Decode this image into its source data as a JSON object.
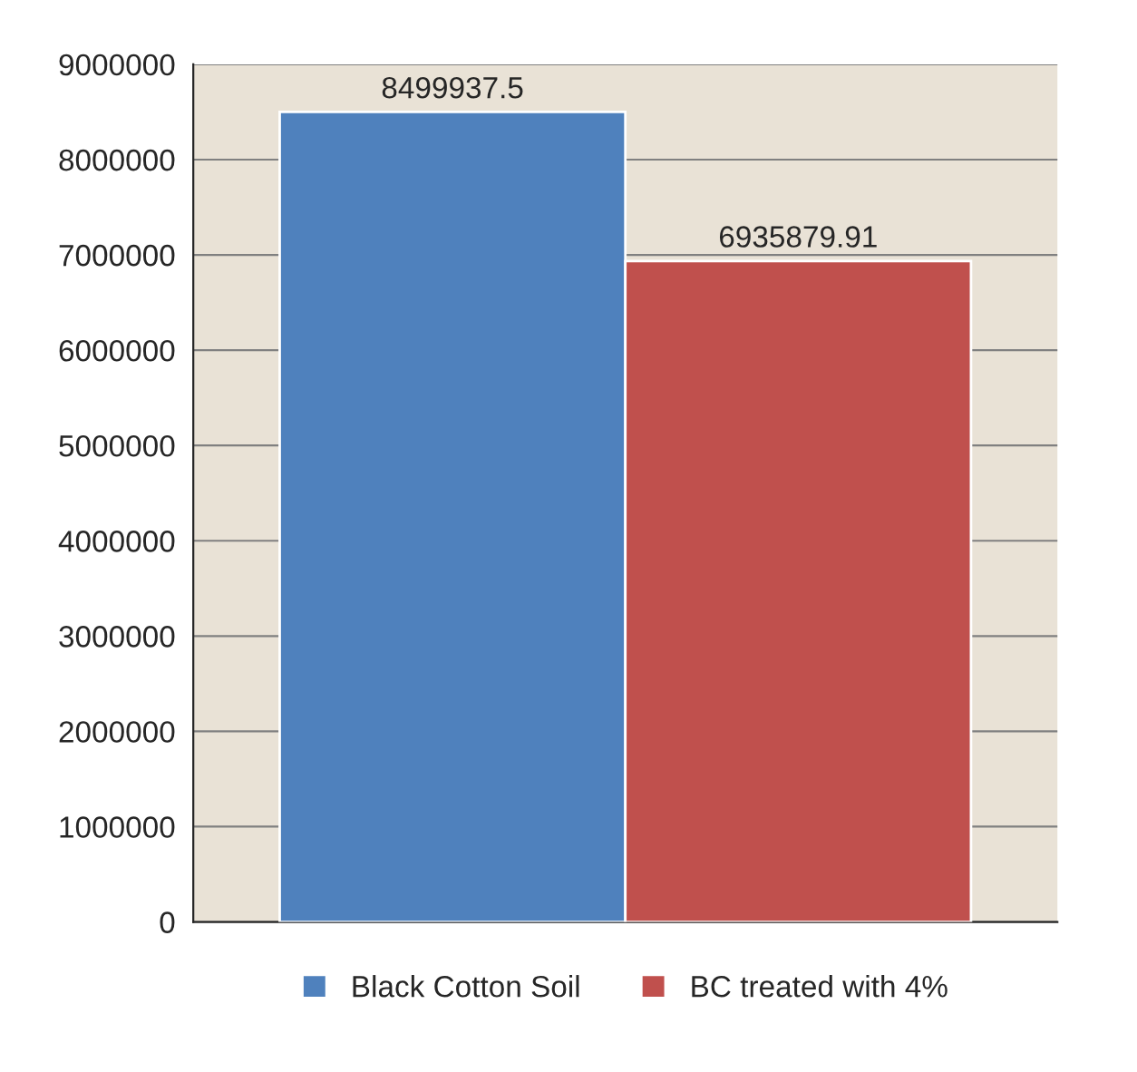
{
  "chart_data": {
    "type": "bar",
    "categories": [
      null
    ],
    "series": [
      {
        "name": "Black Cotton Soil",
        "color": "#4f81bd",
        "values": [
          8499937.5
        ]
      },
      {
        "name": "BC treated with 4%",
        "color": "#c0504d",
        "values": [
          6935879.91
        ]
      }
    ],
    "value_labels": [
      [
        "8499937.5"
      ],
      [
        "6935879.91"
      ]
    ],
    "ylim": [
      0,
      9000000
    ],
    "yticks": [
      0,
      1000000,
      2000000,
      3000000,
      4000000,
      5000000,
      6000000,
      7000000,
      8000000,
      9000000
    ],
    "grid": "y",
    "legend": "bottom"
  }
}
